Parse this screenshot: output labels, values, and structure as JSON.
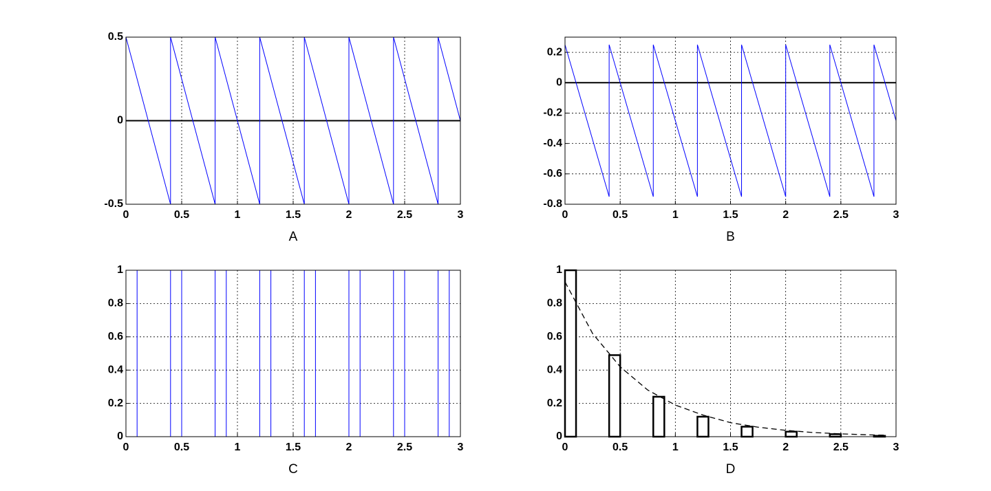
{
  "chart_data": [
    {
      "type": "line",
      "xlabel": "A",
      "xlim": [
        0,
        3
      ],
      "ylim": [
        -0.5,
        0.5
      ],
      "xticks": [
        0,
        0.5,
        1,
        1.5,
        2,
        2.5,
        3
      ],
      "yticks": [
        -0.5,
        0,
        0.5
      ],
      "grid": true,
      "reference_line": {
        "value": 0,
        "color": "#000000"
      },
      "series": [
        {
          "type": "line",
          "color": "#0000ff",
          "x": [
            0,
            0.4,
            0.4,
            0.8,
            0.8,
            1.2,
            1.2,
            1.6,
            1.6,
            2,
            2,
            2.4,
            2.4,
            2.8,
            2.8,
            3
          ],
          "values": [
            0.5,
            -0.5,
            0.5,
            -0.5,
            0.5,
            -0.5,
            0.5,
            -0.5,
            0.5,
            -0.5,
            0.5,
            -0.5,
            0.5,
            -0.5,
            0.5,
            0
          ]
        }
      ]
    },
    {
      "type": "line",
      "xlabel": "B",
      "xlim": [
        0,
        3
      ],
      "ylim": [
        -0.8,
        0.3
      ],
      "xticks": [
        0,
        0.5,
        1,
        1.5,
        2,
        2.5,
        3
      ],
      "yticks": [
        -0.8,
        -0.6,
        -0.4,
        -0.2,
        0,
        0.2
      ],
      "grid": true,
      "reference_line": {
        "value": 0,
        "color": "#000000"
      },
      "series": [
        {
          "type": "line",
          "color": "#0000ff",
          "x": [
            0,
            0.4,
            0.4,
            0.8,
            0.8,
            1.2,
            1.2,
            1.6,
            1.6,
            2,
            2,
            2.4,
            2.4,
            2.8,
            2.8,
            3
          ],
          "values": [
            0.25,
            -0.75,
            0.25,
            -0.75,
            0.25,
            -0.75,
            0.25,
            -0.75,
            0.25,
            -0.75,
            0.25,
            -0.75,
            0.25,
            -0.75,
            0.25,
            -0.25
          ]
        }
      ]
    },
    {
      "type": "line",
      "xlabel": "C",
      "xlim": [
        0,
        3
      ],
      "ylim": [
        0,
        1
      ],
      "xticks": [
        0,
        0.5,
        1,
        1.5,
        2,
        2.5,
        3
      ],
      "yticks": [
        0,
        0.2,
        0.4,
        0.6,
        0.8,
        1
      ],
      "grid": true,
      "series": [
        {
          "type": "line",
          "color": "#0000ff",
          "x": [
            0,
            0.1,
            0.1,
            0.4,
            0.4,
            0.5,
            0.5,
            0.8,
            0.8,
            0.9,
            0.9,
            1.2,
            1.2,
            1.3,
            1.3,
            1.6,
            1.6,
            1.7,
            1.7,
            2,
            2,
            2.1,
            2.1,
            2.4,
            2.4,
            2.5,
            2.5,
            2.8,
            2.8,
            2.9,
            2.9,
            3
          ],
          "values": [
            1,
            1,
            0,
            0,
            1,
            1,
            0,
            0,
            1,
            1,
            0,
            0,
            1,
            1,
            0,
            0,
            1,
            1,
            0,
            0,
            1,
            1,
            0,
            0,
            1,
            1,
            0,
            0,
            1,
            1,
            0,
            0
          ]
        }
      ]
    },
    {
      "type": "combo",
      "xlabel": "D",
      "xlim": [
        0,
        3
      ],
      "ylim": [
        0,
        1
      ],
      "xticks": [
        0,
        0.5,
        1,
        1.5,
        2,
        2.5,
        3
      ],
      "yticks": [
        0,
        0.2,
        0.4,
        0.6,
        0.8,
        1
      ],
      "grid": true,
      "series": [
        {
          "type": "bar",
          "color": "#000000",
          "x_start": [
            0,
            0.4,
            0.8,
            1.2,
            1.6,
            2,
            2.4,
            2.8
          ],
          "x_end": [
            0.1,
            0.5,
            0.9,
            1.3,
            1.7,
            2.1,
            2.5,
            2.9
          ],
          "values": [
            1,
            0.49,
            0.24,
            0.12,
            0.06,
            0.03,
            0.015,
            0.005
          ]
        },
        {
          "type": "line",
          "color": "#000000",
          "dashed": true,
          "x": [
            0,
            0.25,
            0.5,
            0.75,
            1,
            1.25,
            1.5,
            1.75,
            2,
            2.25,
            2.5,
            2.75,
            2.9
          ],
          "values": [
            0.93,
            0.62,
            0.42,
            0.28,
            0.19,
            0.13,
            0.084,
            0.057,
            0.038,
            0.025,
            0.017,
            0.011,
            0.009
          ]
        }
      ]
    }
  ]
}
